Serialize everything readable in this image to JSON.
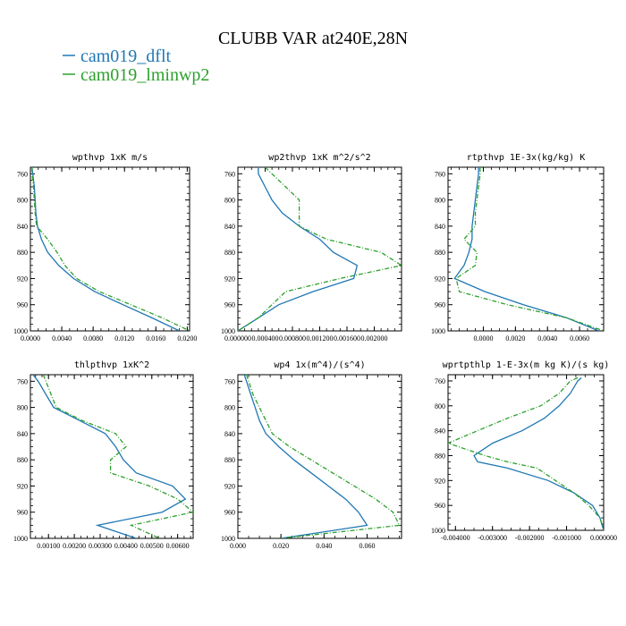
{
  "figure": {
    "title": "CLUBB VAR at240E,28N",
    "legend": [
      {
        "label": "cam019_dflt",
        "color": "#1f77b4"
      },
      {
        "label": "cam019_lminwp2",
        "color": "#2ca02c"
      }
    ]
  },
  "chart_data": [
    {
      "type": "line",
      "title": "wpthvp   1xK m/s",
      "xlim": [
        0,
        0.0203
      ],
      "ylim": [
        1000,
        750
      ],
      "xticks": [
        0,
        0.004,
        0.008,
        0.012,
        0.016,
        0.02
      ],
      "xtick_labels": [
        "0.0000",
        "0.0040",
        "0.0080",
        "0.0120",
        "0.0160",
        "0.0200"
      ],
      "yticks": [
        760,
        800,
        840,
        880,
        920,
        960,
        1000
      ],
      "ytick_labels": [
        "760",
        "800",
        "840",
        "880",
        "920",
        "960",
        "1000"
      ],
      "levels": [
        750,
        760,
        780,
        800,
        820,
        840,
        860,
        880,
        900,
        920,
        940,
        960,
        980,
        1000
      ],
      "series": [
        {
          "name": "cam019_dflt",
          "color": "#1f77b4",
          "dash": "",
          "values": [
            0.0002,
            0.0003,
            0.0005,
            0.0006,
            0.0007,
            0.0009,
            0.0014,
            0.0022,
            0.0036,
            0.0055,
            0.0082,
            0.0118,
            0.0155,
            0.019
          ]
        },
        {
          "name": "cam019_lminwp2",
          "color": "#2ca02c",
          "dash": "5,2,1,2",
          "values": [
            0.0002,
            0.0002,
            0.0004,
            0.0005,
            0.0006,
            0.0008,
            0.0022,
            0.0034,
            0.0044,
            0.0059,
            0.0088,
            0.0128,
            0.0168,
            0.0203
          ]
        }
      ]
    },
    {
      "type": "line",
      "title": "wp2thvp   1xK m^2/s^2",
      "xlim": [
        0,
        0.0024
      ],
      "ylim": [
        1000,
        750
      ],
      "xticks": [
        0,
        0.0004,
        0.0008,
        0.0012,
        0.0016,
        0.002
      ],
      "xtick_labels": [
        "0.000000",
        "0.000400",
        "0.000800",
        "0.001200",
        "0.001600",
        "0.002000"
      ],
      "yticks": [
        760,
        800,
        840,
        880,
        920,
        960,
        1000
      ],
      "ytick_labels": [
        "760",
        "800",
        "840",
        "880",
        "920",
        "960",
        "1000"
      ],
      "levels": [
        750,
        760,
        780,
        800,
        820,
        840,
        860,
        880,
        900,
        920,
        940,
        960,
        980,
        1000
      ],
      "series": [
        {
          "name": "cam019_dflt",
          "color": "#1f77b4",
          "dash": "",
          "values": [
            0.0003,
            0.0003,
            0.0004,
            0.0005,
            0.00065,
            0.0009,
            0.0012,
            0.0014,
            0.00175,
            0.0017,
            0.0011,
            0.0006,
            0.0003,
            0.0
          ]
        },
        {
          "name": "cam019_lminwp2",
          "color": "#2ca02c",
          "dash": "5,2,1,2",
          "values": [
            0.0004,
            0.0005,
            0.0007,
            0.0009,
            0.0009,
            0.0009,
            0.0013,
            0.0021,
            0.0024,
            0.0015,
            0.0007,
            0.0005,
            0.0003,
            0.0
          ]
        }
      ]
    },
    {
      "type": "line",
      "title": "rtpthvp   1E-3x(kg/kg) K",
      "xlim": [
        -0.0022,
        0.0075
      ],
      "ylim": [
        1000,
        750
      ],
      "xticks": [
        0,
        0.002,
        0.004,
        0.006
      ],
      "xtick_labels": [
        "0.0000",
        "0.0020",
        "0.0040",
        "0.0060"
      ],
      "yticks": [
        760,
        800,
        840,
        880,
        920,
        960,
        1000
      ],
      "ytick_labels": [
        "760",
        "800",
        "840",
        "880",
        "920",
        "960",
        "1000"
      ],
      "levels": [
        750,
        760,
        780,
        800,
        820,
        840,
        860,
        880,
        900,
        920,
        940,
        960,
        980,
        1000
      ],
      "series": [
        {
          "name": "cam019_dflt",
          "color": "#1f77b4",
          "dash": "",
          "values": [
            -0.0003,
            -0.0003,
            -0.0004,
            -0.0005,
            -0.0006,
            -0.0007,
            -0.0007,
            -0.0009,
            -0.0012,
            -0.0018,
            0.0001,
            0.0025,
            0.0052,
            0.0072
          ]
        },
        {
          "name": "cam019_lminwp2",
          "color": "#2ca02c",
          "dash": "5,2,1,2",
          "values": [
            -0.0002,
            -0.0002,
            -0.0003,
            -0.0004,
            -0.0005,
            -0.0005,
            -0.0012,
            -0.0004,
            -0.0005,
            -0.0017,
            -0.0015,
            0.0015,
            0.0052,
            0.0075
          ]
        }
      ]
    },
    {
      "type": "line",
      "title": "thlpthvp   1xK^2",
      "xlim": [
        0.0003,
        0.0066
      ],
      "ylim": [
        1000,
        750
      ],
      "xticks": [
        0.001,
        0.002,
        0.003,
        0.004,
        0.005,
        0.006
      ],
      "xtick_labels": [
        "0.00100",
        "0.00200",
        "0.00300",
        "0.00400",
        "0.00500",
        "0.00600"
      ],
      "yticks": [
        760,
        800,
        840,
        880,
        920,
        960,
        1000
      ],
      "ytick_labels": [
        "760",
        "800",
        "840",
        "880",
        "920",
        "960",
        "1000"
      ],
      "levels": [
        750,
        760,
        780,
        800,
        820,
        840,
        860,
        880,
        900,
        920,
        940,
        960,
        980,
        1000
      ],
      "series": [
        {
          "name": "cam019_dflt",
          "color": "#1f77b4",
          "dash": "",
          "values": [
            0.0004,
            0.0006,
            0.0009,
            0.0012,
            0.0022,
            0.0032,
            0.0036,
            0.0039,
            0.0044,
            0.0058,
            0.0063,
            0.0054,
            0.0029,
            0.0044
          ]
        },
        {
          "name": "cam019_lminwp2",
          "color": "#2ca02c",
          "dash": "5,2,1,2",
          "values": [
            0.0008,
            0.0009,
            0.0011,
            0.0013,
            0.0023,
            0.0036,
            0.004,
            0.0034,
            0.0034,
            0.0049,
            0.006,
            0.0066,
            0.0042,
            0.0053
          ]
        }
      ]
    },
    {
      "type": "line",
      "title": "wp4   1x(m^4)/(s^4)",
      "xlim": [
        0,
        0.076
      ],
      "ylim": [
        1000,
        750
      ],
      "xticks": [
        0,
        0.02,
        0.04,
        0.06
      ],
      "xtick_labels": [
        "0.000",
        "0.020",
        "0.040",
        "0.060"
      ],
      "yticks": [
        760,
        800,
        840,
        880,
        920,
        960,
        1000
      ],
      "ytick_labels": [
        "760",
        "800",
        "840",
        "880",
        "920",
        "960",
        "1000"
      ],
      "levels": [
        750,
        760,
        780,
        800,
        820,
        840,
        860,
        880,
        900,
        920,
        940,
        960,
        980,
        1000
      ],
      "series": [
        {
          "name": "cam019_dflt",
          "color": "#1f77b4",
          "dash": "",
          "values": [
            0.003,
            0.004,
            0.006,
            0.008,
            0.01,
            0.013,
            0.019,
            0.026,
            0.034,
            0.042,
            0.05,
            0.056,
            0.06,
            0.02
          ]
        },
        {
          "name": "cam019_lminwp2",
          "color": "#2ca02c",
          "dash": "5,2,1,2",
          "values": [
            0.004,
            0.005,
            0.007,
            0.01,
            0.013,
            0.016,
            0.024,
            0.034,
            0.044,
            0.054,
            0.064,
            0.072,
            0.075,
            0.02
          ]
        }
      ]
    },
    {
      "type": "line",
      "title": "wprtpthlp   1-E-3x(m kg K)/(s kg)",
      "xlim": [
        -0.0042,
        0
      ],
      "ylim": [
        1000,
        750
      ],
      "xticks": [
        -0.004,
        -0.003,
        -0.002,
        -0.001,
        0
      ],
      "xtick_labels": [
        "-0.004000",
        "-0.003000",
        "-0.002000",
        "-0.001000",
        "0.000000"
      ],
      "yticks": [
        760,
        800,
        840,
        880,
        920,
        960,
        1000
      ],
      "ytick_labels": [
        "760",
        "800",
        "840",
        "880",
        "920",
        "960",
        "1000"
      ],
      "levels": [
        755,
        760,
        780,
        800,
        820,
        840,
        860,
        880,
        890,
        900,
        920,
        940,
        960,
        980,
        1000
      ],
      "series": [
        {
          "name": "cam019_dflt",
          "color": "#1f77b4",
          "dash": "",
          "values": [
            -0.0006,
            -0.0007,
            -0.0009,
            -0.0012,
            -0.0016,
            -0.0022,
            -0.003,
            -0.0035,
            -0.0034,
            -0.0026,
            -0.0015,
            -0.0008,
            -0.0003,
            -0.0001,
            0.0
          ]
        },
        {
          "name": "cam019_lminwp2",
          "color": "#2ca02c",
          "dash": "5,2,1,2",
          "values": [
            -0.0007,
            -0.0009,
            -0.0012,
            -0.0017,
            -0.0026,
            -0.0034,
            -0.0042,
            -0.0032,
            -0.0026,
            -0.0018,
            -0.0013,
            -0.0008,
            -0.0004,
            -0.0001,
            0.0
          ]
        }
      ]
    }
  ]
}
